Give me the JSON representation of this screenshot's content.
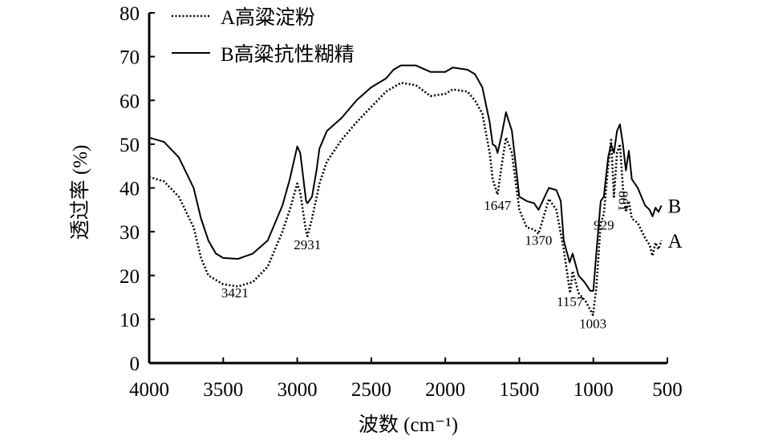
{
  "chart_data": {
    "type": "line",
    "title": "",
    "xlabel": "波数 (cm⁻¹)",
    "ylabel": "透过率 (%)",
    "xlim": [
      4000,
      500
    ],
    "ylim": [
      0,
      80
    ],
    "x_reversed": true,
    "grid": false,
    "legend_position": "top-left",
    "xticks": [
      "4000",
      "3500",
      "3000",
      "2500",
      "2000",
      "1500",
      "1000",
      "500"
    ],
    "yticks": [
      "0",
      "10",
      "20",
      "30",
      "40",
      "50",
      "60",
      "70",
      "80"
    ],
    "series": [
      {
        "name": "A高粱淀粉",
        "end_label": "A",
        "style": "dotted",
        "points": [
          [
            4000,
            42.5
          ],
          [
            3900,
            41.5
          ],
          [
            3800,
            38
          ],
          [
            3700,
            31
          ],
          [
            3650,
            24
          ],
          [
            3600,
            20
          ],
          [
            3500,
            18
          ],
          [
            3400,
            17.5
          ],
          [
            3300,
            18.5
          ],
          [
            3200,
            22
          ],
          [
            3100,
            30
          ],
          [
            3050,
            35
          ],
          [
            3000,
            41
          ],
          [
            2980,
            39
          ],
          [
            2940,
            30
          ],
          [
            2931,
            29
          ],
          [
            2900,
            33
          ],
          [
            2850,
            41
          ],
          [
            2800,
            46
          ],
          [
            2700,
            51
          ],
          [
            2600,
            55
          ],
          [
            2500,
            58.5
          ],
          [
            2400,
            62
          ],
          [
            2300,
            64
          ],
          [
            2200,
            63.5
          ],
          [
            2100,
            61
          ],
          [
            2000,
            61.5
          ],
          [
            1950,
            62.5
          ],
          [
            1850,
            62
          ],
          [
            1800,
            60
          ],
          [
            1750,
            57
          ],
          [
            1700,
            48
          ],
          [
            1680,
            42
          ],
          [
            1647,
            38.5
          ],
          [
            1620,
            45
          ],
          [
            1590,
            51.5
          ],
          [
            1550,
            48
          ],
          [
            1500,
            35
          ],
          [
            1450,
            31
          ],
          [
            1400,
            30.5
          ],
          [
            1370,
            29.5
          ],
          [
            1300,
            37.5
          ],
          [
            1250,
            35
          ],
          [
            1200,
            26
          ],
          [
            1157,
            16
          ],
          [
            1140,
            21
          ],
          [
            1100,
            16
          ],
          [
            1050,
            14
          ],
          [
            1003,
            11
          ],
          [
            980,
            17
          ],
          [
            950,
            32
          ],
          [
            929,
            34
          ],
          [
            900,
            45
          ],
          [
            880,
            51
          ],
          [
            861,
            38
          ],
          [
            840,
            48
          ],
          [
            820,
            50
          ],
          [
            800,
            40
          ],
          [
            780,
            34.5
          ],
          [
            760,
            37
          ],
          [
            740,
            33
          ],
          [
            700,
            32
          ],
          [
            650,
            28.5
          ],
          [
            620,
            27
          ],
          [
            600,
            24.5
          ],
          [
            580,
            27.5
          ],
          [
            560,
            26
          ],
          [
            540,
            28
          ]
        ]
      },
      {
        "name": "B高粱抗性糊精",
        "end_label": "B",
        "style": "solid",
        "points": [
          [
            4000,
            51.5
          ],
          [
            3900,
            50.5
          ],
          [
            3800,
            47
          ],
          [
            3700,
            40
          ],
          [
            3650,
            33
          ],
          [
            3600,
            28
          ],
          [
            3550,
            25
          ],
          [
            3500,
            24
          ],
          [
            3400,
            23.8
          ],
          [
            3300,
            25
          ],
          [
            3200,
            28
          ],
          [
            3100,
            36
          ],
          [
            3050,
            42
          ],
          [
            3000,
            49.5
          ],
          [
            2980,
            48
          ],
          [
            2940,
            37
          ],
          [
            2931,
            36.5
          ],
          [
            2900,
            38
          ],
          [
            2870,
            44
          ],
          [
            2850,
            49
          ],
          [
            2800,
            53
          ],
          [
            2700,
            56
          ],
          [
            2600,
            60
          ],
          [
            2500,
            63
          ],
          [
            2400,
            65
          ],
          [
            2350,
            67
          ],
          [
            2300,
            68
          ],
          [
            2200,
            68
          ],
          [
            2100,
            66.5
          ],
          [
            2000,
            66.5
          ],
          [
            1950,
            67.5
          ],
          [
            1850,
            67
          ],
          [
            1800,
            66
          ],
          [
            1750,
            63
          ],
          [
            1700,
            55
          ],
          [
            1680,
            50
          ],
          [
            1660,
            49.5
          ],
          [
            1647,
            48
          ],
          [
            1620,
            52
          ],
          [
            1590,
            57.3
          ],
          [
            1550,
            53
          ],
          [
            1500,
            38
          ],
          [
            1450,
            37
          ],
          [
            1400,
            36.5
          ],
          [
            1370,
            35
          ],
          [
            1300,
            40
          ],
          [
            1250,
            39.5
          ],
          [
            1220,
            37
          ],
          [
            1200,
            28
          ],
          [
            1160,
            23
          ],
          [
            1140,
            25
          ],
          [
            1100,
            20
          ],
          [
            1060,
            18.5
          ],
          [
            1020,
            16.5
          ],
          [
            1000,
            16.5
          ],
          [
            980,
            25
          ],
          [
            950,
            37
          ],
          [
            929,
            38
          ],
          [
            900,
            47
          ],
          [
            880,
            50
          ],
          [
            861,
            48
          ],
          [
            840,
            53
          ],
          [
            820,
            54.5
          ],
          [
            800,
            50
          ],
          [
            780,
            44
          ],
          [
            760,
            48.5
          ],
          [
            740,
            42
          ],
          [
            700,
            40
          ],
          [
            650,
            36
          ],
          [
            620,
            35
          ],
          [
            600,
            33.5
          ],
          [
            580,
            35.5
          ],
          [
            560,
            34.5
          ],
          [
            540,
            36
          ]
        ]
      }
    ],
    "annotations": [
      {
        "text": "3421",
        "x": 3421,
        "y": 15
      },
      {
        "text": "2931",
        "x": 2931,
        "y": 26
      },
      {
        "text": "1647",
        "x": 1647,
        "y": 35
      },
      {
        "text": "1370",
        "x": 1370,
        "y": 27
      },
      {
        "text": "1157",
        "x": 1157,
        "y": 13
      },
      {
        "text": "1003",
        "x": 1003,
        "y": 8
      },
      {
        "text": "929",
        "x": 929,
        "y": 30.5
      },
      {
        "text": "861",
        "x": 861,
        "y": 37,
        "rotated": true
      }
    ]
  }
}
